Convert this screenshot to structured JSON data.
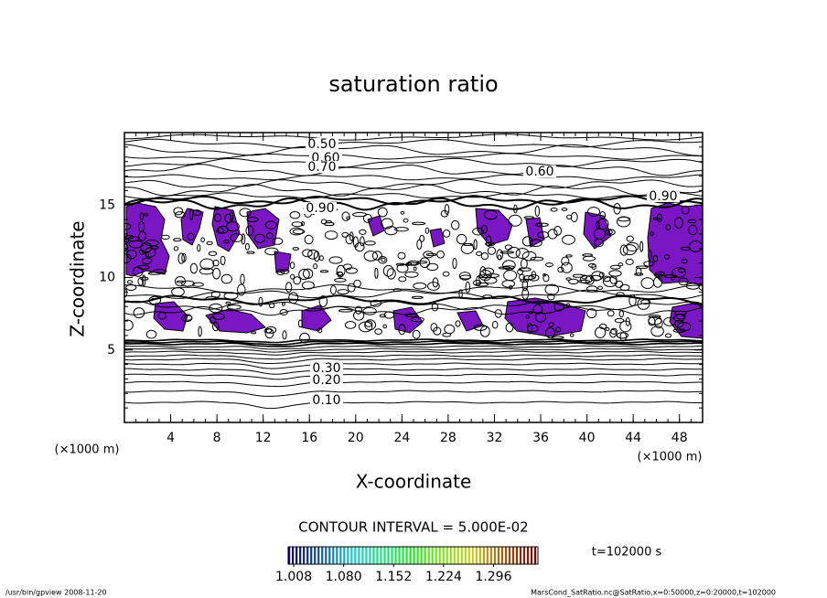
{
  "chart_data": {
    "type": "contour",
    "title": "saturation ratio",
    "x_label": "X-coordinate",
    "y_label": "Z-coordinate",
    "x_unit": "(×1000 m)",
    "y_unit": "(×1000 m)",
    "xlim": [
      0,
      50
    ],
    "ylim": [
      0,
      20
    ],
    "xticks": [
      4,
      8,
      12,
      16,
      20,
      24,
      28,
      32,
      36,
      40,
      44,
      48
    ],
    "yticks": [
      5,
      10,
      15
    ],
    "contour_labels": [
      {
        "value": 0.5,
        "label": "0.50"
      },
      {
        "value": 0.6,
        "label": "0.60"
      },
      {
        "value": 0.7,
        "label": "0.70"
      },
      {
        "value": 0.6,
        "label": "0.60"
      },
      {
        "value": 0.9,
        "label": "0.90"
      },
      {
        "value": 0.9,
        "label": "0.90"
      },
      {
        "value": 0.3,
        "label": "0.30"
      },
      {
        "value": 0.2,
        "label": "0.20"
      },
      {
        "value": 0.1,
        "label": "0.10"
      }
    ],
    "shade_color": "#7b16c4",
    "contour_interval": "CONTOUR INTERVAL = 5.000E-02",
    "time_label": "t=102000 s",
    "clim": [
      1.0,
      1.36
    ],
    "colorbar_ticks": [
      {
        "value": 1.008,
        "label": "1.008"
      },
      {
        "value": 1.08,
        "label": "1.080"
      },
      1.152,
      1.224,
      1.296
    ],
    "footer_left": "/usr/bin/gpview   2008-11-20",
    "footer_right": "MarsCond_SatRatio.nc@SatRatio,x=0:50000,z=0:20000,t=102000"
  }
}
